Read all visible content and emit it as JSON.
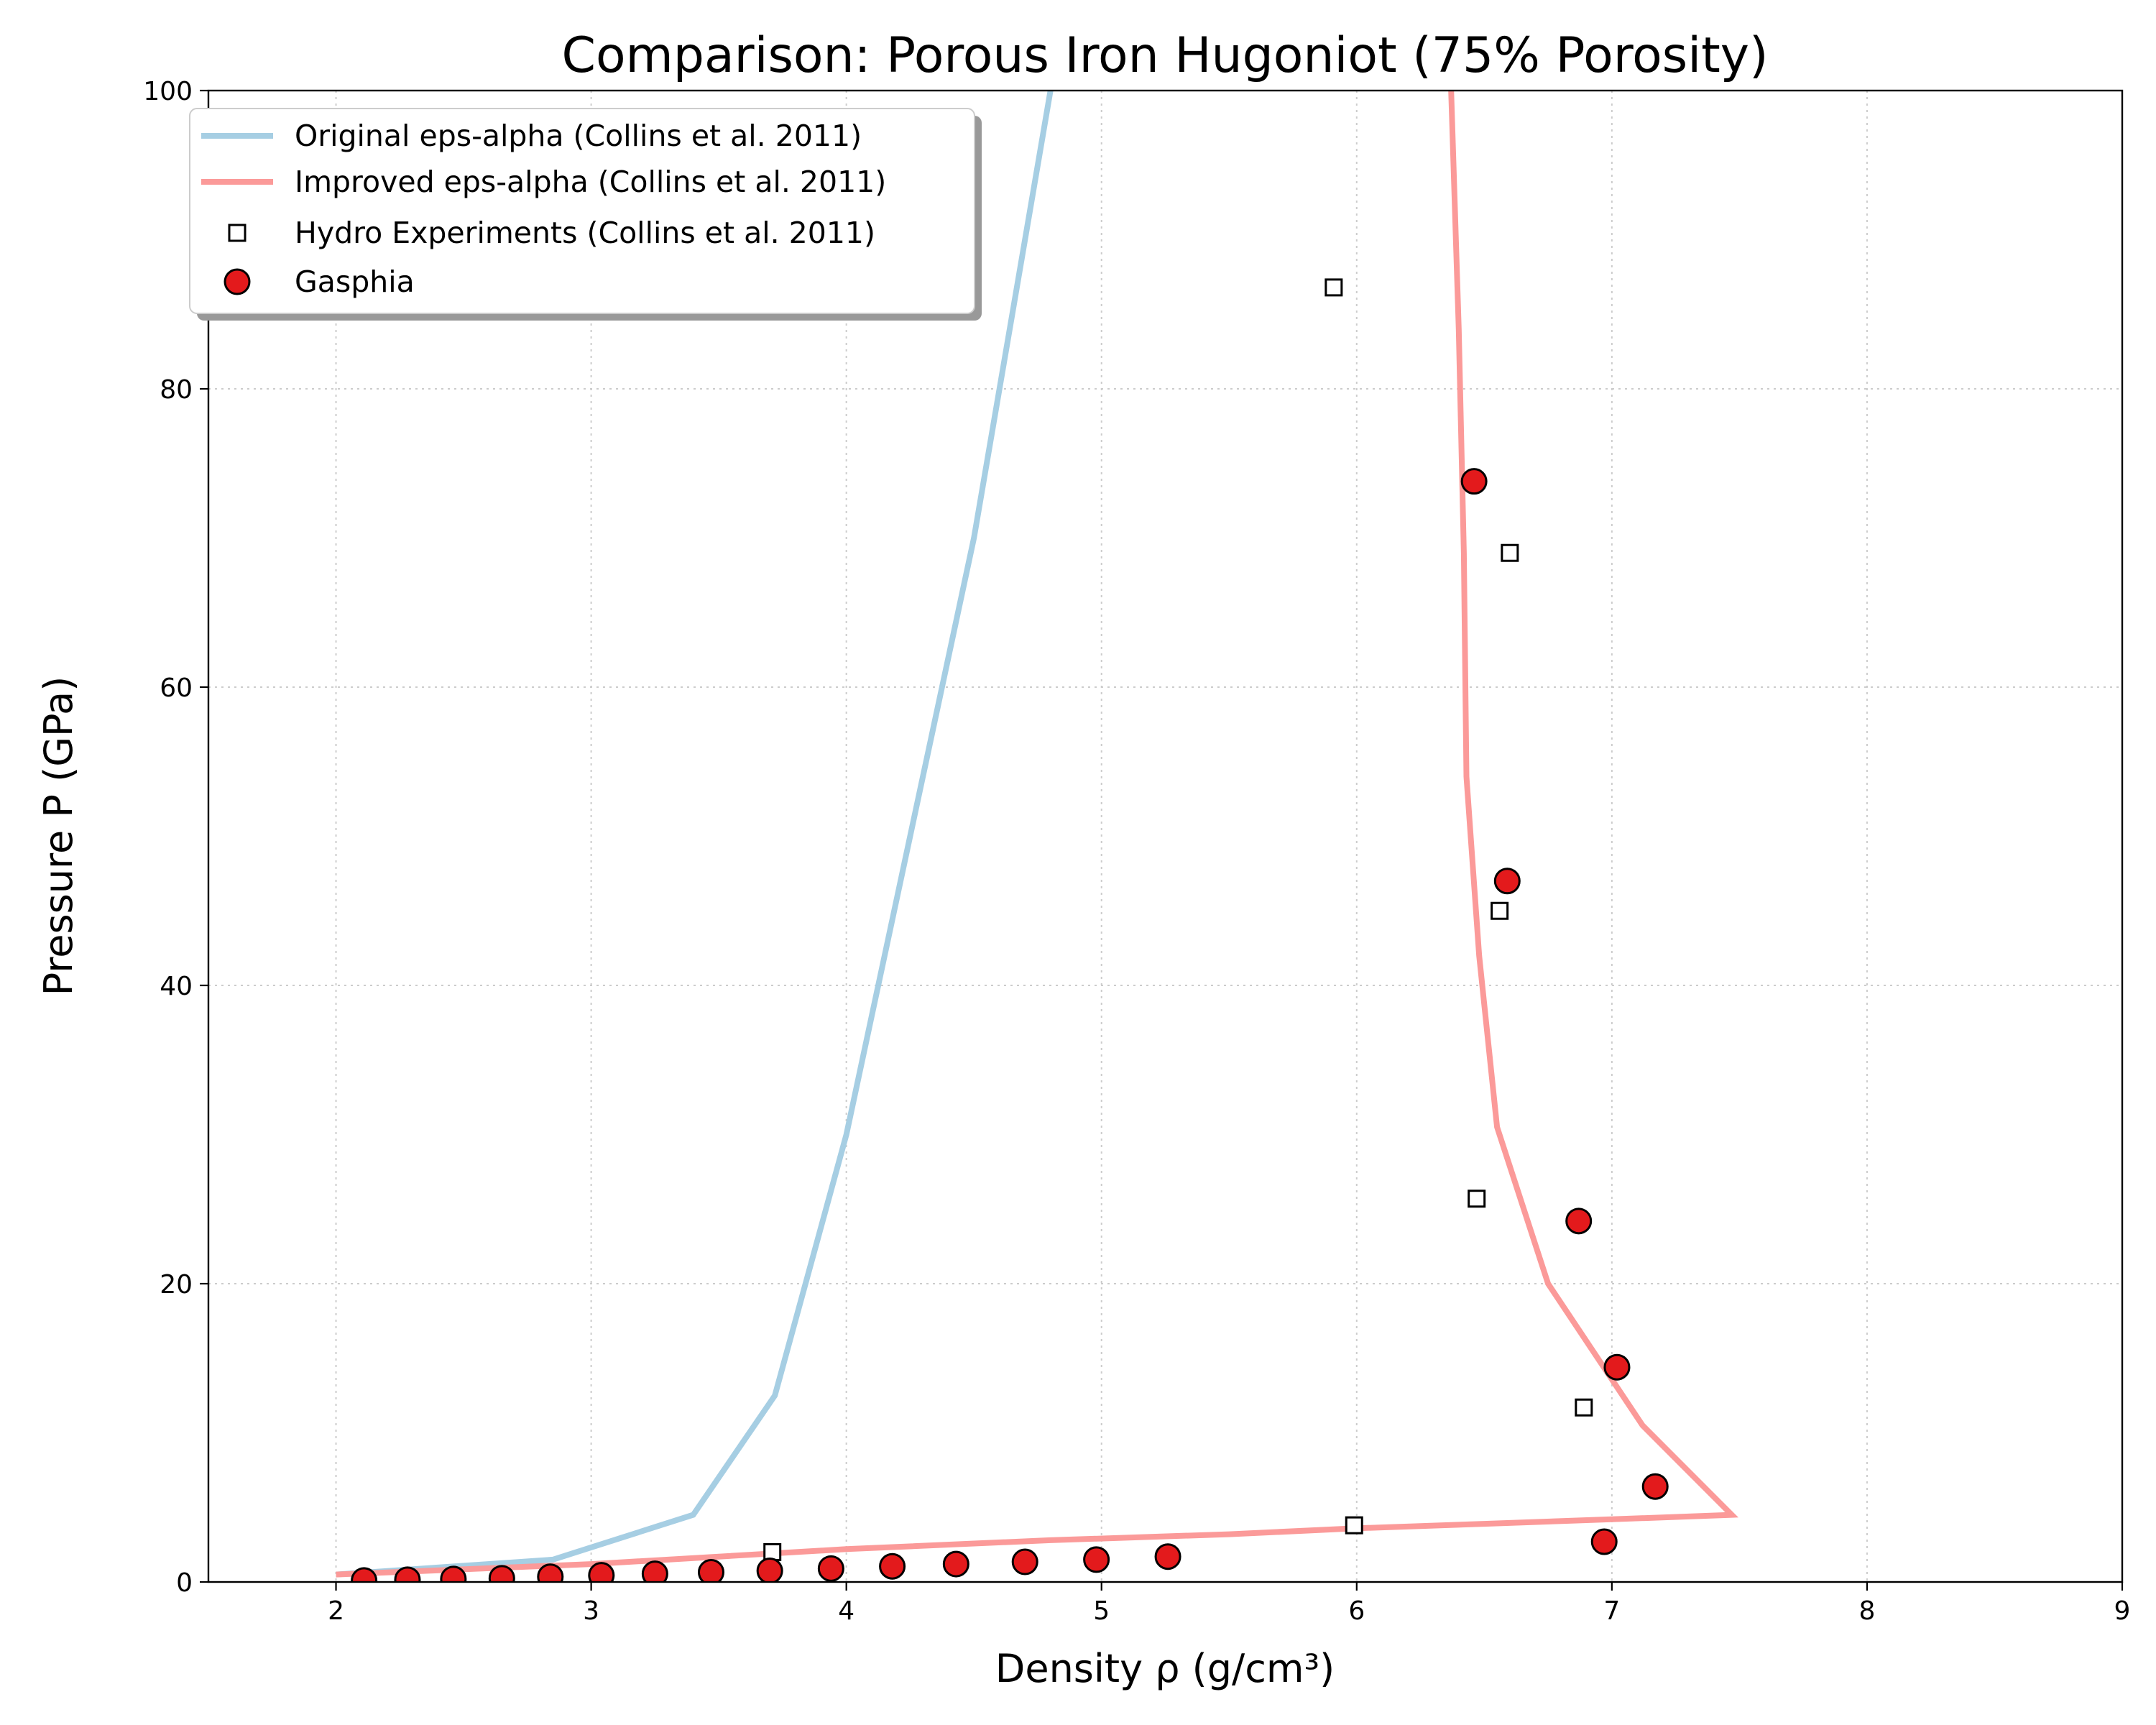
{
  "chart_data": {
    "type": "scatter",
    "title": "Comparison: Porous Iron Hugoniot (75% Porosity)",
    "xlabel": "Density ρ (g/cm³)",
    "ylabel": "Pressure P (GPa)",
    "xlim": [
      1.5,
      9
    ],
    "ylim": [
      0,
      100
    ],
    "xticks": [
      2,
      3,
      4,
      5,
      6,
      7,
      8,
      9
    ],
    "yticks": [
      0,
      20,
      40,
      60,
      80,
      100
    ],
    "grid": true,
    "legend_position": "top-left",
    "series": [
      {
        "name": "Original eps-alpha (Collins et al. 2011)",
        "kind": "line",
        "color": "#a6cee3",
        "x": [
          2.0,
          2.85,
          3.4,
          3.72,
          4.0,
          4.25,
          4.5,
          4.65,
          4.8,
          5.2
        ],
        "y": [
          0.5,
          1.5,
          4.5,
          12.5,
          30.0,
          50.0,
          70.0,
          85.0,
          100.0,
          140.0
        ]
      },
      {
        "name": "Improved eps-alpha (Collins et al. 2011)",
        "kind": "line",
        "color": "#fb9a99",
        "x": [
          2.0,
          3.0,
          4.0,
          4.8,
          5.5,
          6.0,
          6.5,
          7.0,
          7.47,
          7.12,
          6.75,
          6.55,
          6.48,
          6.43,
          6.42,
          6.4,
          6.37
        ],
        "y": [
          0.5,
          1.2,
          2.2,
          2.8,
          3.2,
          3.6,
          3.9,
          4.2,
          4.5,
          10.5,
          20.0,
          30.5,
          42.0,
          54.0,
          69.0,
          84.0,
          100.0
        ]
      },
      {
        "name": "Hydro Experiments (Collins et al. 2011)",
        "kind": "scatter",
        "marker": "square",
        "color": "#ffffff",
        "edge": "#000000",
        "x": [
          3.71,
          5.99,
          6.89,
          6.47,
          6.56,
          6.6,
          5.91
        ],
        "y": [
          2.0,
          3.8,
          11.7,
          25.7,
          45.0,
          69.0,
          86.8
        ]
      },
      {
        "name": "Gasphia",
        "kind": "scatter",
        "marker": "circle",
        "color": "#e31a1c",
        "edge": "#000000",
        "x": [
          2.11,
          2.28,
          2.46,
          2.65,
          2.84,
          3.04,
          3.25,
          3.47,
          3.7,
          3.94,
          4.18,
          4.43,
          4.7,
          4.98,
          5.26,
          6.97,
          7.17,
          7.02,
          6.87,
          6.59,
          6.46
        ],
        "y": [
          0.1,
          0.15,
          0.2,
          0.25,
          0.35,
          0.45,
          0.55,
          0.65,
          0.75,
          0.9,
          1.05,
          1.2,
          1.35,
          1.5,
          1.7,
          2.7,
          6.4,
          14.4,
          24.2,
          47.0,
          73.8
        ]
      }
    ]
  }
}
